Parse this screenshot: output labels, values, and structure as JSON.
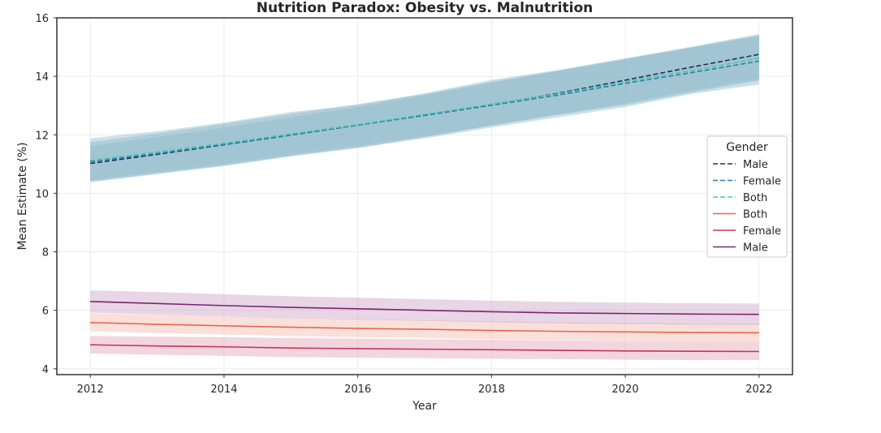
{
  "chart_data": {
    "type": "line",
    "title": "Nutrition Paradox: Obesity vs. Malnutrition",
    "xlabel": "Year",
    "ylabel": "Mean Estimate (%)",
    "xlim": [
      2011.5,
      2022.5
    ],
    "ylim": [
      3.8,
      16.0
    ],
    "x_ticks": [
      2012,
      2014,
      2016,
      2018,
      2020,
      2022
    ],
    "y_ticks": [
      4,
      6,
      8,
      10,
      12,
      14,
      16
    ],
    "grid": true,
    "legend": {
      "title": "Gender",
      "placement": "center-right"
    },
    "x": [
      2012,
      2013,
      2014,
      2015,
      2016,
      2017,
      2018,
      2019,
      2020,
      2021,
      2022
    ],
    "series": [
      {
        "name": "Male",
        "group": "obesity",
        "style": "dashed",
        "color": "#2d2a5a",
        "values": [
          11.02,
          11.33,
          11.66,
          11.99,
          12.33,
          12.68,
          13.03,
          13.42,
          13.87,
          14.32,
          14.75
        ],
        "lower": [
          10.38,
          10.65,
          10.93,
          11.26,
          11.55,
          11.92,
          12.32,
          12.7,
          13.07,
          13.51,
          13.9
        ],
        "upper": [
          11.62,
          11.92,
          12.25,
          12.6,
          12.95,
          13.35,
          13.78,
          14.18,
          14.58,
          15.0,
          15.4
        ]
      },
      {
        "name": "Female",
        "group": "obesity",
        "style": "dashed",
        "color": "#2f7fa6",
        "values": [
          11.08,
          11.36,
          11.67,
          11.99,
          12.33,
          12.66,
          13.01,
          13.36,
          13.76,
          14.13,
          14.52
        ],
        "lower": [
          10.4,
          10.68,
          10.95,
          11.28,
          11.55,
          11.88,
          12.25,
          12.6,
          12.95,
          13.4,
          13.72
        ],
        "upper": [
          11.75,
          12.05,
          12.38,
          12.72,
          13.05,
          13.4,
          13.82,
          14.2,
          14.6,
          14.98,
          15.38
        ]
      },
      {
        "name": "Both",
        "group": "obesity",
        "style": "dashed",
        "color": "#48c9b0",
        "values": [
          11.12,
          11.41,
          11.71,
          12.03,
          12.35,
          12.7,
          13.05,
          13.4,
          13.82,
          14.2,
          14.62
        ],
        "lower": [
          10.45,
          10.72,
          11.0,
          11.32,
          11.62,
          11.95,
          12.32,
          12.68,
          13.02,
          13.45,
          13.85
        ],
        "upper": [
          11.88,
          12.12,
          12.42,
          12.78,
          13.02,
          13.42,
          13.88,
          14.22,
          14.62,
          15.02,
          15.45
        ]
      },
      {
        "name": "Both",
        "group": "malnutrition",
        "style": "solid",
        "color": "#e8674d",
        "values": [
          5.58,
          5.52,
          5.47,
          5.42,
          5.38,
          5.35,
          5.31,
          5.28,
          5.26,
          5.24,
          5.23
        ],
        "lower": [
          5.28,
          5.22,
          5.17,
          5.12,
          5.08,
          5.05,
          5.01,
          4.98,
          4.96,
          4.94,
          4.93
        ],
        "upper": [
          5.9,
          5.84,
          5.79,
          5.74,
          5.7,
          5.66,
          5.62,
          5.59,
          5.57,
          5.55,
          5.54
        ]
      },
      {
        "name": "Female",
        "group": "malnutrition",
        "style": "solid",
        "color": "#c2365e",
        "values": [
          4.82,
          4.78,
          4.75,
          4.71,
          4.69,
          4.67,
          4.65,
          4.63,
          4.61,
          4.6,
          4.59
        ],
        "lower": [
          4.52,
          4.48,
          4.44,
          4.4,
          4.38,
          4.36,
          4.34,
          4.33,
          4.31,
          4.3,
          4.3
        ],
        "upper": [
          5.12,
          5.1,
          5.08,
          5.05,
          5.03,
          5.01,
          4.99,
          4.97,
          4.95,
          4.94,
          4.93
        ]
      },
      {
        "name": "Male",
        "group": "malnutrition",
        "style": "solid",
        "color": "#7b2670",
        "values": [
          6.3,
          6.23,
          6.16,
          6.1,
          6.05,
          6.0,
          5.95,
          5.91,
          5.89,
          5.87,
          5.86
        ],
        "lower": [
          5.92,
          5.85,
          5.79,
          5.73,
          5.68,
          5.64,
          5.59,
          5.55,
          5.53,
          5.51,
          5.5
        ],
        "upper": [
          6.68,
          6.62,
          6.55,
          6.48,
          6.43,
          6.38,
          6.33,
          6.29,
          6.26,
          6.24,
          6.23
        ]
      }
    ],
    "band_colors": {
      "obesity": "#8ab8c8",
      "malnutrition_both": "#f3b5a8",
      "malnutrition_female": "#e39cb2",
      "malnutrition_male": "#c89ac2"
    },
    "frame_color": "#333333",
    "grid_color": "#ececec"
  }
}
